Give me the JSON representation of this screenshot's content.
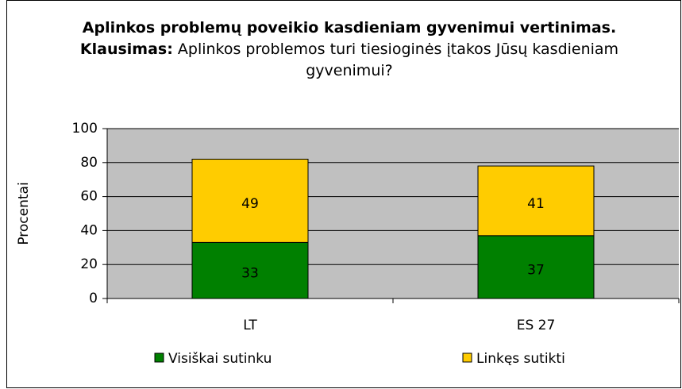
{
  "chart_data": {
    "type": "stacked_bar",
    "title": "Aplinkos problemų poveikio kasdieniam gyvenimui vertinimas. Klausimas:",
    "subtitle": "Aplinkos problemos turi tiesioginės įtakos Jūsų kasdieniam gyvenimui?",
    "y_label": "Procentai",
    "categories": [
      "LT",
      "ES 27"
    ],
    "series": [
      {
        "name": "Visiškai sutinku",
        "color": "#008000",
        "values": [
          33,
          37
        ]
      },
      {
        "name": "Linkęs sutikti",
        "color": "#ffcc00",
        "values": [
          49,
          41
        ]
      }
    ],
    "ylim": [
      0,
      100
    ],
    "yticks": [
      0,
      20,
      40,
      60,
      80,
      100
    ],
    "grid": true,
    "legend": "bottom"
  }
}
